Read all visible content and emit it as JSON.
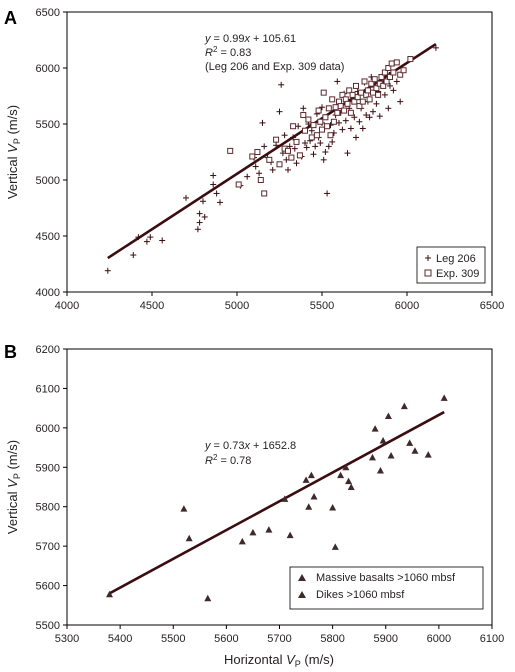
{
  "chart_data": [
    {
      "type": "scatter",
      "panel_label": "A",
      "xlim": [
        4000,
        6500
      ],
      "ylim": [
        4000,
        6500
      ],
      "x_ticks": [
        4000,
        4500,
        5000,
        5500,
        6000,
        6500
      ],
      "y_ticks": [
        4000,
        4500,
        5000,
        5500,
        6000,
        6500
      ],
      "ylabel_main": "Vertical ",
      "ylabel_italic": "V",
      "ylabel_sub": "P",
      "ylabel_unit": " (m/s)",
      "annotation": {
        "equation": "y = 0.99x + 105.61",
        "r2": "R2 = 0.83",
        "r2_text_a": "R",
        "r2_text_sup": "2",
        "r2_text_b": " = 0.83",
        "note": "(Leg 206 and Exp. 309 data)"
      },
      "fit": {
        "slope": 0.99,
        "intercept": 105.61,
        "x_range": [
          4240,
          6170
        ]
      },
      "legend_position": "bottom-right",
      "series": [
        {
          "name": "Leg 206",
          "marker": "plus",
          "points": [
            [
              4240,
              4190
            ],
            [
              4390,
              4330
            ],
            [
              4420,
              4490
            ],
            [
              4470,
              4450
            ],
            [
              4490,
              4490
            ],
            [
              4560,
              4460
            ],
            [
              4700,
              4840
            ],
            [
              4770,
              4560
            ],
            [
              4780,
              4620
            ],
            [
              4780,
              4700
            ],
            [
              4800,
              4810
            ],
            [
              4810,
              4670
            ],
            [
              4860,
              5040
            ],
            [
              4860,
              4960
            ],
            [
              4880,
              4880
            ],
            [
              4900,
              4800
            ],
            [
              5020,
              4950
            ],
            [
              5060,
              5030
            ],
            [
              5100,
              5200
            ],
            [
              5110,
              5120
            ],
            [
              5130,
              5060
            ],
            [
              5150,
              5510
            ],
            [
              5160,
              5300
            ],
            [
              5180,
              5200
            ],
            [
              5200,
              5160
            ],
            [
              5210,
              5090
            ],
            [
              5230,
              5310
            ],
            [
              5250,
              5610
            ],
            [
              5260,
              5850
            ],
            [
              5270,
              5240
            ],
            [
              5280,
              5400
            ],
            [
              5290,
              5180
            ],
            [
              5300,
              5090
            ],
            [
              5310,
              5300
            ],
            [
              5330,
              5380
            ],
            [
              5340,
              5280
            ],
            [
              5350,
              5150
            ],
            [
              5360,
              5480
            ],
            [
              5380,
              5210
            ],
            [
              5390,
              5640
            ],
            [
              5400,
              5330
            ],
            [
              5410,
              5290
            ],
            [
              5420,
              5500
            ],
            [
              5430,
              5350
            ],
            [
              5440,
              5440
            ],
            [
              5450,
              5230
            ],
            [
              5460,
              5300
            ],
            [
              5470,
              5590
            ],
            [
              5480,
              5380
            ],
            [
              5490,
              5330
            ],
            [
              5500,
              5510
            ],
            [
              5500,
              5650
            ],
            [
              5510,
              5180
            ],
            [
              5520,
              5250
            ],
            [
              5530,
              4880
            ],
            [
              5540,
              5300
            ],
            [
              5550,
              5490
            ],
            [
              5560,
              5340
            ],
            [
              5570,
              5420
            ],
            [
              5580,
              5580
            ],
            [
              5590,
              5880
            ],
            [
              5600,
              5510
            ],
            [
              5610,
              5600
            ],
            [
              5620,
              5450
            ],
            [
              5630,
              5770
            ],
            [
              5640,
              5530
            ],
            [
              5650,
              5240
            ],
            [
              5660,
              5640
            ],
            [
              5670,
              5460
            ],
            [
              5680,
              5700
            ],
            [
              5690,
              5560
            ],
            [
              5700,
              5380
            ],
            [
              5710,
              5790
            ],
            [
              5720,
              5520
            ],
            [
              5730,
              5640
            ],
            [
              5740,
              5460
            ],
            [
              5750,
              5870
            ],
            [
              5760,
              5580
            ],
            [
              5770,
              5700
            ],
            [
              5780,
              5560
            ],
            [
              5790,
              5920
            ],
            [
              5800,
              5610
            ],
            [
              5810,
              5830
            ],
            [
              5820,
              5680
            ],
            [
              5830,
              5790
            ],
            [
              5840,
              5570
            ],
            [
              5860,
              5880
            ],
            [
              5870,
              5760
            ],
            [
              5890,
              5640
            ],
            [
              5900,
              5840
            ],
            [
              5910,
              5960
            ],
            [
              5920,
              5800
            ],
            [
              5940,
              5880
            ],
            [
              5960,
              5700
            ],
            [
              6170,
              6180
            ]
          ]
        },
        {
          "name": "Exp. 309",
          "marker": "open-square",
          "points": [
            [
              4960,
              5260
            ],
            [
              5010,
              4960
            ],
            [
              5090,
              5210
            ],
            [
              5120,
              5250
            ],
            [
              5140,
              5000
            ],
            [
              5160,
              4880
            ],
            [
              5190,
              5180
            ],
            [
              5230,
              5360
            ],
            [
              5250,
              5140
            ],
            [
              5280,
              5280
            ],
            [
              5300,
              5260
            ],
            [
              5320,
              5200
            ],
            [
              5330,
              5480
            ],
            [
              5350,
              5340
            ],
            [
              5370,
              5220
            ],
            [
              5390,
              5580
            ],
            [
              5400,
              5440
            ],
            [
              5420,
              5540
            ],
            [
              5440,
              5380
            ],
            [
              5450,
              5490
            ],
            [
              5470,
              5400
            ],
            [
              5480,
              5620
            ],
            [
              5490,
              5520
            ],
            [
              5500,
              5450
            ],
            [
              5510,
              5780
            ],
            [
              5520,
              5560
            ],
            [
              5530,
              5480
            ],
            [
              5540,
              5640
            ],
            [
              5550,
              5400
            ],
            [
              5560,
              5720
            ],
            [
              5570,
              5520
            ],
            [
              5580,
              5650
            ],
            [
              5590,
              5600
            ],
            [
              5600,
              5700
            ],
            [
              5610,
              5660
            ],
            [
              5620,
              5760
            ],
            [
              5630,
              5620
            ],
            [
              5640,
              5720
            ],
            [
              5650,
              5680
            ],
            [
              5660,
              5800
            ],
            [
              5670,
              5600
            ],
            [
              5680,
              5760
            ],
            [
              5690,
              5700
            ],
            [
              5700,
              5840
            ],
            [
              5710,
              5740
            ],
            [
              5720,
              5660
            ],
            [
              5730,
              5780
            ],
            [
              5740,
              5700
            ],
            [
              5750,
              5880
            ],
            [
              5760,
              5760
            ],
            [
              5770,
              5800
            ],
            [
              5780,
              5720
            ],
            [
              5790,
              5860
            ],
            [
              5800,
              5780
            ],
            [
              5810,
              5900
            ],
            [
              5820,
              5820
            ],
            [
              5830,
              5760
            ],
            [
              5840,
              5860
            ],
            [
              5850,
              5920
            ],
            [
              5860,
              5840
            ],
            [
              5870,
              5960
            ],
            [
              5880,
              5880
            ],
            [
              5890,
              6000
            ],
            [
              5900,
              5920
            ],
            [
              5910,
              6040
            ],
            [
              5920,
              5960
            ],
            [
              5940,
              6050
            ],
            [
              5960,
              5940
            ],
            [
              5980,
              5980
            ],
            [
              6020,
              6080
            ]
          ]
        }
      ]
    },
    {
      "type": "scatter",
      "panel_label": "B",
      "xlim": [
        5300,
        6100
      ],
      "ylim": [
        5500,
        6200
      ],
      "x_ticks": [
        5300,
        5400,
        5500,
        5600,
        5700,
        5800,
        5900,
        6000,
        6100
      ],
      "y_ticks": [
        5500,
        5600,
        5700,
        5800,
        5900,
        6000,
        6100,
        6200
      ],
      "xlabel_main": "Horizontal ",
      "xlabel_italic": "V",
      "xlabel_sub": "P",
      "xlabel_unit": " (m/s)",
      "ylabel_main": "Vertical ",
      "ylabel_italic": "V",
      "ylabel_sub": "P",
      "ylabel_unit": " (m/s)",
      "annotation": {
        "equation": "y = 0.73x + 1652.8",
        "r2_text_a": "R",
        "r2_text_sup": "2",
        "r2_text_b": " = 0.78"
      },
      "fit": {
        "slope": 0.73,
        "intercept": 1652.8,
        "x_range": [
          5380,
          6010
        ]
      },
      "legend_position": "bottom-right",
      "series": [
        {
          "name": "Massive basalts >1060 mbsf",
          "marker": "filled-triangle",
          "points": [
            [
              5380,
              5578
            ],
            [
              5520,
              5795
            ],
            [
              5530,
              5720
            ],
            [
              5565,
              5568
            ],
            [
              5630,
              5712
            ],
            [
              5650,
              5735
            ],
            [
              5680,
              5742
            ],
            [
              5710,
              5820
            ],
            [
              5720,
              5728
            ],
            [
              5750,
              5868
            ],
            [
              5755,
              5800
            ],
            [
              5760,
              5880
            ],
            [
              5765,
              5826
            ],
            [
              5800,
              5798
            ],
            [
              5805,
              5698
            ],
            [
              5815,
              5880
            ]
          ]
        },
        {
          "name": "Dikes >1060 mbsf",
          "marker": "filled-triangle",
          "points": [
            [
              5825,
              5900
            ],
            [
              5830,
              5865
            ],
            [
              5835,
              5850
            ],
            [
              5875,
              5925
            ],
            [
              5880,
              5998
            ],
            [
              5890,
              5892
            ],
            [
              5895,
              5968
            ],
            [
              5905,
              6030
            ],
            [
              5910,
              5930
            ],
            [
              5935,
              6055
            ],
            [
              5945,
              5962
            ],
            [
              5955,
              5942
            ],
            [
              5980,
              5932
            ],
            [
              6010,
              6076
            ]
          ]
        }
      ]
    }
  ]
}
